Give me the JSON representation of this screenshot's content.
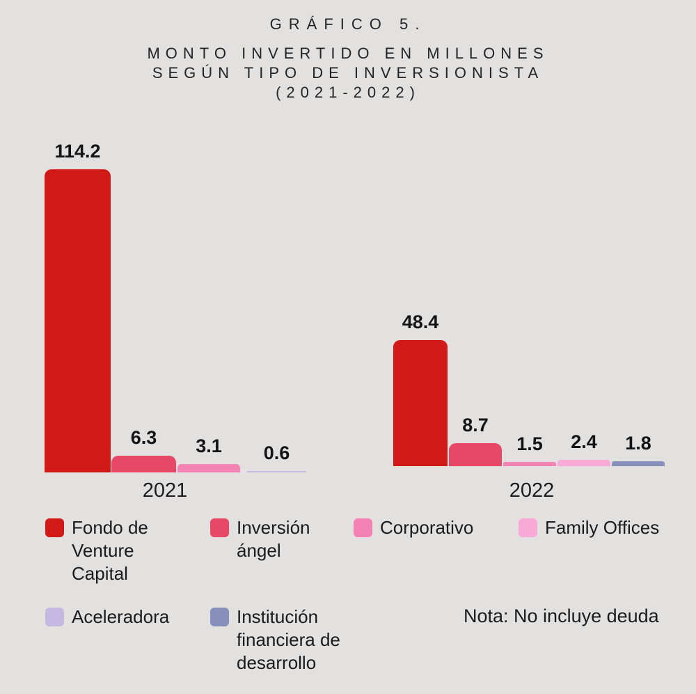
{
  "header": {
    "kicker": "GRÁFICO 5.",
    "lines": [
      "MONTO INVERTIDO EN MILLONES",
      "SEGÚN TIPO DE INVERSIONISTA",
      "(2021-2022)"
    ]
  },
  "chart_data": {
    "type": "bar",
    "title": "GRÁFICO 5. MONTO INVERTIDO EN MILLONES SEGÚN TIPO DE INVERSIONISTA (2021-2022)",
    "unit": "millones",
    "categories": [
      "2021",
      "2022"
    ],
    "series": [
      {
        "name": "Fondo de Venture Capital",
        "color": "#d11918",
        "values": [
          114.2,
          48.4
        ]
      },
      {
        "name": "Inversión ángel",
        "color": "#e84868",
        "values": [
          6.3,
          8.7
        ]
      },
      {
        "name": "Corporativo",
        "color": "#f383b4",
        "values": [
          3.1,
          1.5
        ]
      },
      {
        "name": "Family Offices",
        "color": "#f9a9d7",
        "values": [
          null,
          2.4
        ]
      },
      {
        "name": "Aceleradora",
        "color": "#c6b9e1",
        "values": [
          0.6,
          null
        ]
      },
      {
        "name": "Institución financiera de desarrollo",
        "color": "#8690ba",
        "values": [
          null,
          1.8
        ]
      }
    ],
    "value_labels": true,
    "grid": false,
    "axis_visible": false,
    "legend_position": "bottom",
    "note": "Nota: No incluye deuda",
    "background_color": "#e2e1e0"
  },
  "legend": {
    "items": [
      {
        "label": "Fondo de\nVenture\nCapital"
      },
      {
        "label": "Inversión\nángel"
      },
      {
        "label": "Corporativo"
      },
      {
        "label": "Family Offices"
      },
      {
        "label": "Aceleradora"
      },
      {
        "label": "Institución\nfinanciera de\ndesarrollo"
      }
    ]
  }
}
